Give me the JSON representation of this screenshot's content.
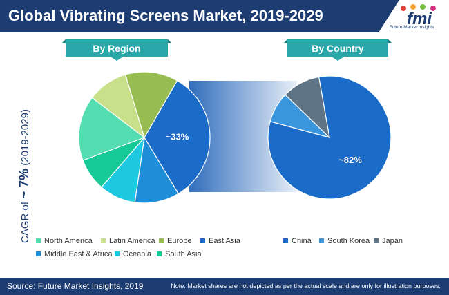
{
  "title": "Global Vibrating Screens Market, 2019-2029",
  "logo": {
    "name": "fmi",
    "subtitle": "Future Market Insights"
  },
  "source": "Source: Future Market Insights, 2019",
  "note": "Note: Market shares are not depicted as per the actual scale and are only for illustration purposes.",
  "cagr": {
    "prefix": "CAGR of ",
    "value": "~ 7%",
    "suffix": " (2019-2029)"
  },
  "colors": {
    "header": "#1c3c72",
    "tab": "#2aa7a9",
    "connector": "#1a5eb5"
  },
  "chart_data": [
    {
      "type": "pie",
      "title": "By Region",
      "highlight_label": "~33%",
      "slices": [
        {
          "name": "East Asia",
          "value": 33,
          "color": "#1a6cc8"
        },
        {
          "name": "Middle East & Africa",
          "value": 11,
          "color": "#1f8ed8"
        },
        {
          "name": "Oceania",
          "value": 9,
          "color": "#1ec8e0"
        },
        {
          "name": "South Asia",
          "value": 8,
          "color": "#17c997"
        },
        {
          "name": "North America",
          "value": 16,
          "color": "#55ddb2"
        },
        {
          "name": "Latin America",
          "value": 10,
          "color": "#c8e08a"
        },
        {
          "name": "Europe",
          "value": 13,
          "color": "#97bc52"
        }
      ]
    },
    {
      "type": "pie",
      "title": "By Country",
      "highlight_label": "~82%",
      "slices": [
        {
          "name": "China",
          "value": 82,
          "color": "#1a6cc8"
        },
        {
          "name": "South Korea",
          "value": 8,
          "color": "#3b97dd"
        },
        {
          "name": "Japan",
          "value": 10,
          "color": "#5f7586"
        }
      ]
    }
  ],
  "legend_region": [
    {
      "label": "North America",
      "color": "#55ddb2"
    },
    {
      "label": "Latin America",
      "color": "#c8e08a"
    },
    {
      "label": "Europe",
      "color": "#97bc52"
    },
    {
      "label": "East Asia",
      "color": "#1a6cc8"
    },
    {
      "label": "Middle East & Africa",
      "color": "#1f8ed8"
    },
    {
      "label": "Oceania",
      "color": "#1ec8e0"
    },
    {
      "label": "South Asia",
      "color": "#17c997"
    }
  ],
  "legend_country": [
    {
      "label": "China",
      "color": "#1a6cc8"
    },
    {
      "label": "South Korea",
      "color": "#3b97dd"
    },
    {
      "label": "Japan",
      "color": "#5f7586"
    }
  ]
}
